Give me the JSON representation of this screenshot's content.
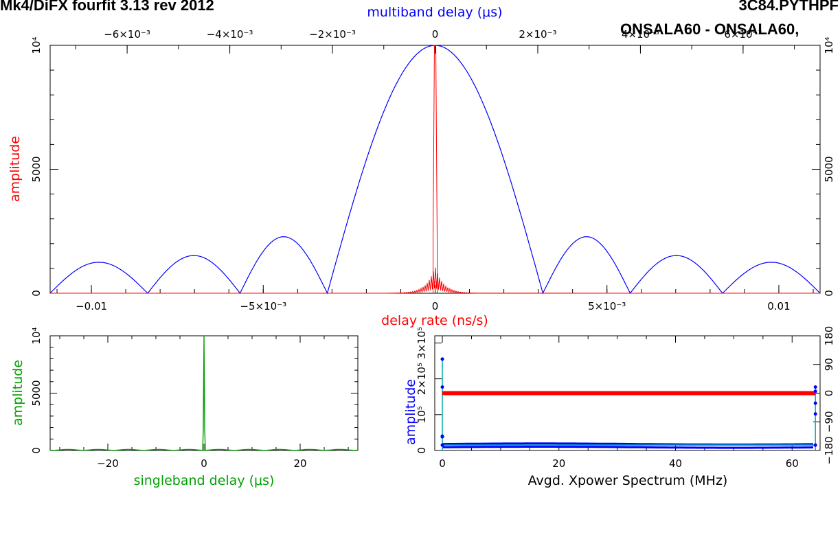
{
  "header": {
    "left_title": "Mk4/DiFX fourfit 3.13 rev 2012",
    "right_title": "3C84.PYTHPF",
    "right_subtitle": "ONSALA60 - ONSALA60,"
  },
  "colors": {
    "multiband": "#0000ff",
    "delay_rate": "#ff0000",
    "singleband": "#00a000",
    "xpower_amp": "#0000ff",
    "xpower_amp_line": "#00b0b0",
    "xpower_phase": "#ff0000"
  },
  "chart_data": [
    {
      "id": "main",
      "type": "line",
      "ylabel": "amplitude",
      "ylim": [
        0,
        10000
      ],
      "yticks": [
        "0",
        "5000",
        "10⁴"
      ],
      "yticks_right": [
        "0",
        "5000",
        "10⁴"
      ],
      "top_axis": {
        "label": "multiband delay (μs)",
        "range": [
          -0.0075,
          0.0075
        ],
        "ticks": [
          "−6×10⁻³",
          "−4×10⁻³",
          "−2×10⁻³",
          "0",
          "2×10⁻³",
          "4×10⁻³",
          "6×10⁻³"
        ]
      },
      "bottom_axis": {
        "label": "delay rate (ns/s)",
        "range": [
          -0.0112,
          0.0112
        ],
        "ticks": [
          "−0.01",
          "−5×10⁻³",
          "0",
          "5×10⁻³",
          "0.01"
        ]
      },
      "series": [
        {
          "key": "multiband_delay",
          "axis": "top",
          "main_lobe": [
            [
              -0.0021,
              0
            ],
            [
              -0.0015,
              5200
            ],
            [
              -0.001,
              7900
            ],
            [
              -0.0005,
              9500
            ],
            [
              0,
              10000
            ],
            [
              0.0005,
              9500
            ],
            [
              0.001,
              7900
            ],
            [
              0.0015,
              5200
            ],
            [
              0.0021,
              0
            ]
          ],
          "side_lobes": [
            {
              "from": -0.0075,
              "to": -0.0056,
              "peak": 1250
            },
            {
              "from": -0.0056,
              "to": -0.0038,
              "peak": 1520
            },
            {
              "from": -0.0038,
              "to": -0.0021,
              "peak": 2280
            },
            {
              "from": 0.0021,
              "to": 0.0038,
              "peak": 2280
            },
            {
              "from": 0.0038,
              "to": 0.0056,
              "peak": 1520
            },
            {
              "from": 0.0056,
              "to": 0.0075,
              "peak": 1250
            }
          ]
        },
        {
          "key": "delay_rate",
          "axis": "bottom",
          "peak_value": 10000,
          "shoulder_value": 2100,
          "base_value": 60
        }
      ]
    },
    {
      "id": "singleband",
      "type": "line",
      "xlabel": "singleband delay (μs)",
      "ylabel": "amplitude",
      "xlim": [
        -32,
        32
      ],
      "ylim": [
        0,
        10000
      ],
      "xticks": [
        "−20",
        "0",
        "20"
      ],
      "yticks": [
        "0",
        "5000",
        "10⁴"
      ],
      "peak": {
        "x": 0,
        "value": 10000,
        "secondary": 1850,
        "base": 60
      }
    },
    {
      "id": "xpower",
      "type": "line",
      "xlabel": "Avgd. Xpower Spectrum (MHz)",
      "ylabel": "amplitude",
      "xlim": [
        -1.3,
        64.8
      ],
      "ylim": [
        0,
        320000
      ],
      "xticks": [
        "0",
        "20",
        "40",
        "60"
      ],
      "yticks": [
        "0",
        "10⁵",
        "2×10⁵",
        "3×10⁵"
      ],
      "y2lim": [
        -180,
        180
      ],
      "y2ticks": [
        "−180",
        "−90",
        "0",
        "90",
        "180"
      ],
      "amplitude_level": 15000,
      "phase_level": 0,
      "edge_points_low": [
        [
          0,
          255000
        ],
        [
          0,
          177000
        ],
        [
          0,
          40000
        ],
        [
          0,
          38000
        ],
        [
          0,
          15000
        ]
      ],
      "edge_points_high": [
        [
          64,
          177000
        ],
        [
          64,
          165000
        ],
        [
          64,
          132000
        ],
        [
          64,
          102000
        ],
        [
          64,
          15000
        ]
      ]
    }
  ]
}
